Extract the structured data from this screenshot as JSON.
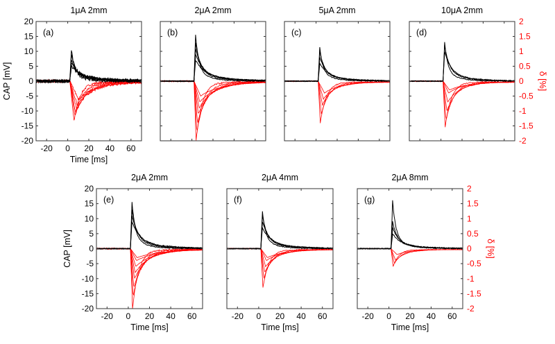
{
  "chart_data": {
    "type": "line",
    "x_label": "Time [ms]",
    "left_y_label": "CAP [mV]",
    "right_y_label": "δ [%]",
    "xlim": [
      -30,
      70
    ],
    "left_ylim": [
      -20,
      20
    ],
    "right_ylim": [
      -2,
      2
    ],
    "x_ticks": [
      "-20",
      "0",
      "20",
      "40",
      "60"
    ],
    "left_y_ticks": [
      "20",
      "15",
      "10",
      "5",
      "0",
      "-5",
      "-10",
      "-15",
      "-20"
    ],
    "right_y_ticks": [
      "2",
      "1.5",
      "1",
      "0.5",
      "0",
      "-0.5",
      "-1",
      "-1.5",
      "-2"
    ],
    "colors": {
      "cap": "#000000",
      "delta": "#ff0000"
    },
    "panels": [
      {
        "title": "1μA 2mm",
        "label": "(a)",
        "noisy": true,
        "cap_peaks_mV": [
          10.5,
          8.5,
          7,
          6,
          5
        ],
        "delta_minima_pct": [
          -1.35,
          -1.2,
          -1.1,
          -0.95,
          -0.8,
          -0.6
        ]
      },
      {
        "title": "2μA 2mm",
        "label": "(b)",
        "noisy": false,
        "cap_peaks_mV": [
          15.5,
          13,
          11,
          9,
          7
        ],
        "delta_minima_pct": [
          -2.0,
          -1.7,
          -1.4,
          -1.1,
          -0.9,
          -0.7,
          -0.5
        ]
      },
      {
        "title": "5μA 2mm",
        "label": "(c)",
        "noisy": false,
        "cap_peaks_mV": [
          11.5,
          10,
          8,
          6
        ],
        "delta_minima_pct": [
          -1.4,
          -1.1,
          -0.8,
          -0.6,
          -0.4
        ]
      },
      {
        "title": "10μA 2mm",
        "label": "(d)",
        "noisy": false,
        "cap_peaks_mV": [
          13,
          12,
          10
        ],
        "delta_minima_pct": [
          -1.55,
          -1.3,
          -1.0,
          -0.7,
          -0.4,
          -0.3
        ]
      },
      {
        "title": "2μA 2mm",
        "label": "(e)",
        "noisy": false,
        "cap_peaks_mV": [
          15.5,
          13,
          11,
          9
        ],
        "delta_minima_pct": [
          -2.0,
          -1.6,
          -1.3,
          -1.0,
          -0.8,
          -0.6,
          -0.4,
          -0.3
        ]
      },
      {
        "title": "2μA 4mm",
        "label": "(f)",
        "noisy": false,
        "cap_peaks_mV": [
          12.5,
          11,
          9,
          7
        ],
        "delta_minima_pct": [
          -1.3,
          -1.0,
          -0.8,
          -0.6,
          -0.4,
          -0.3
        ]
      },
      {
        "title": "2μA 8mm",
        "label": "(g)",
        "noisy": false,
        "cap_peaks_mV": [
          16,
          9,
          7,
          5
        ],
        "delta_minima_pct": [
          -0.6,
          -0.5,
          -0.4,
          -0.2
        ]
      }
    ]
  }
}
